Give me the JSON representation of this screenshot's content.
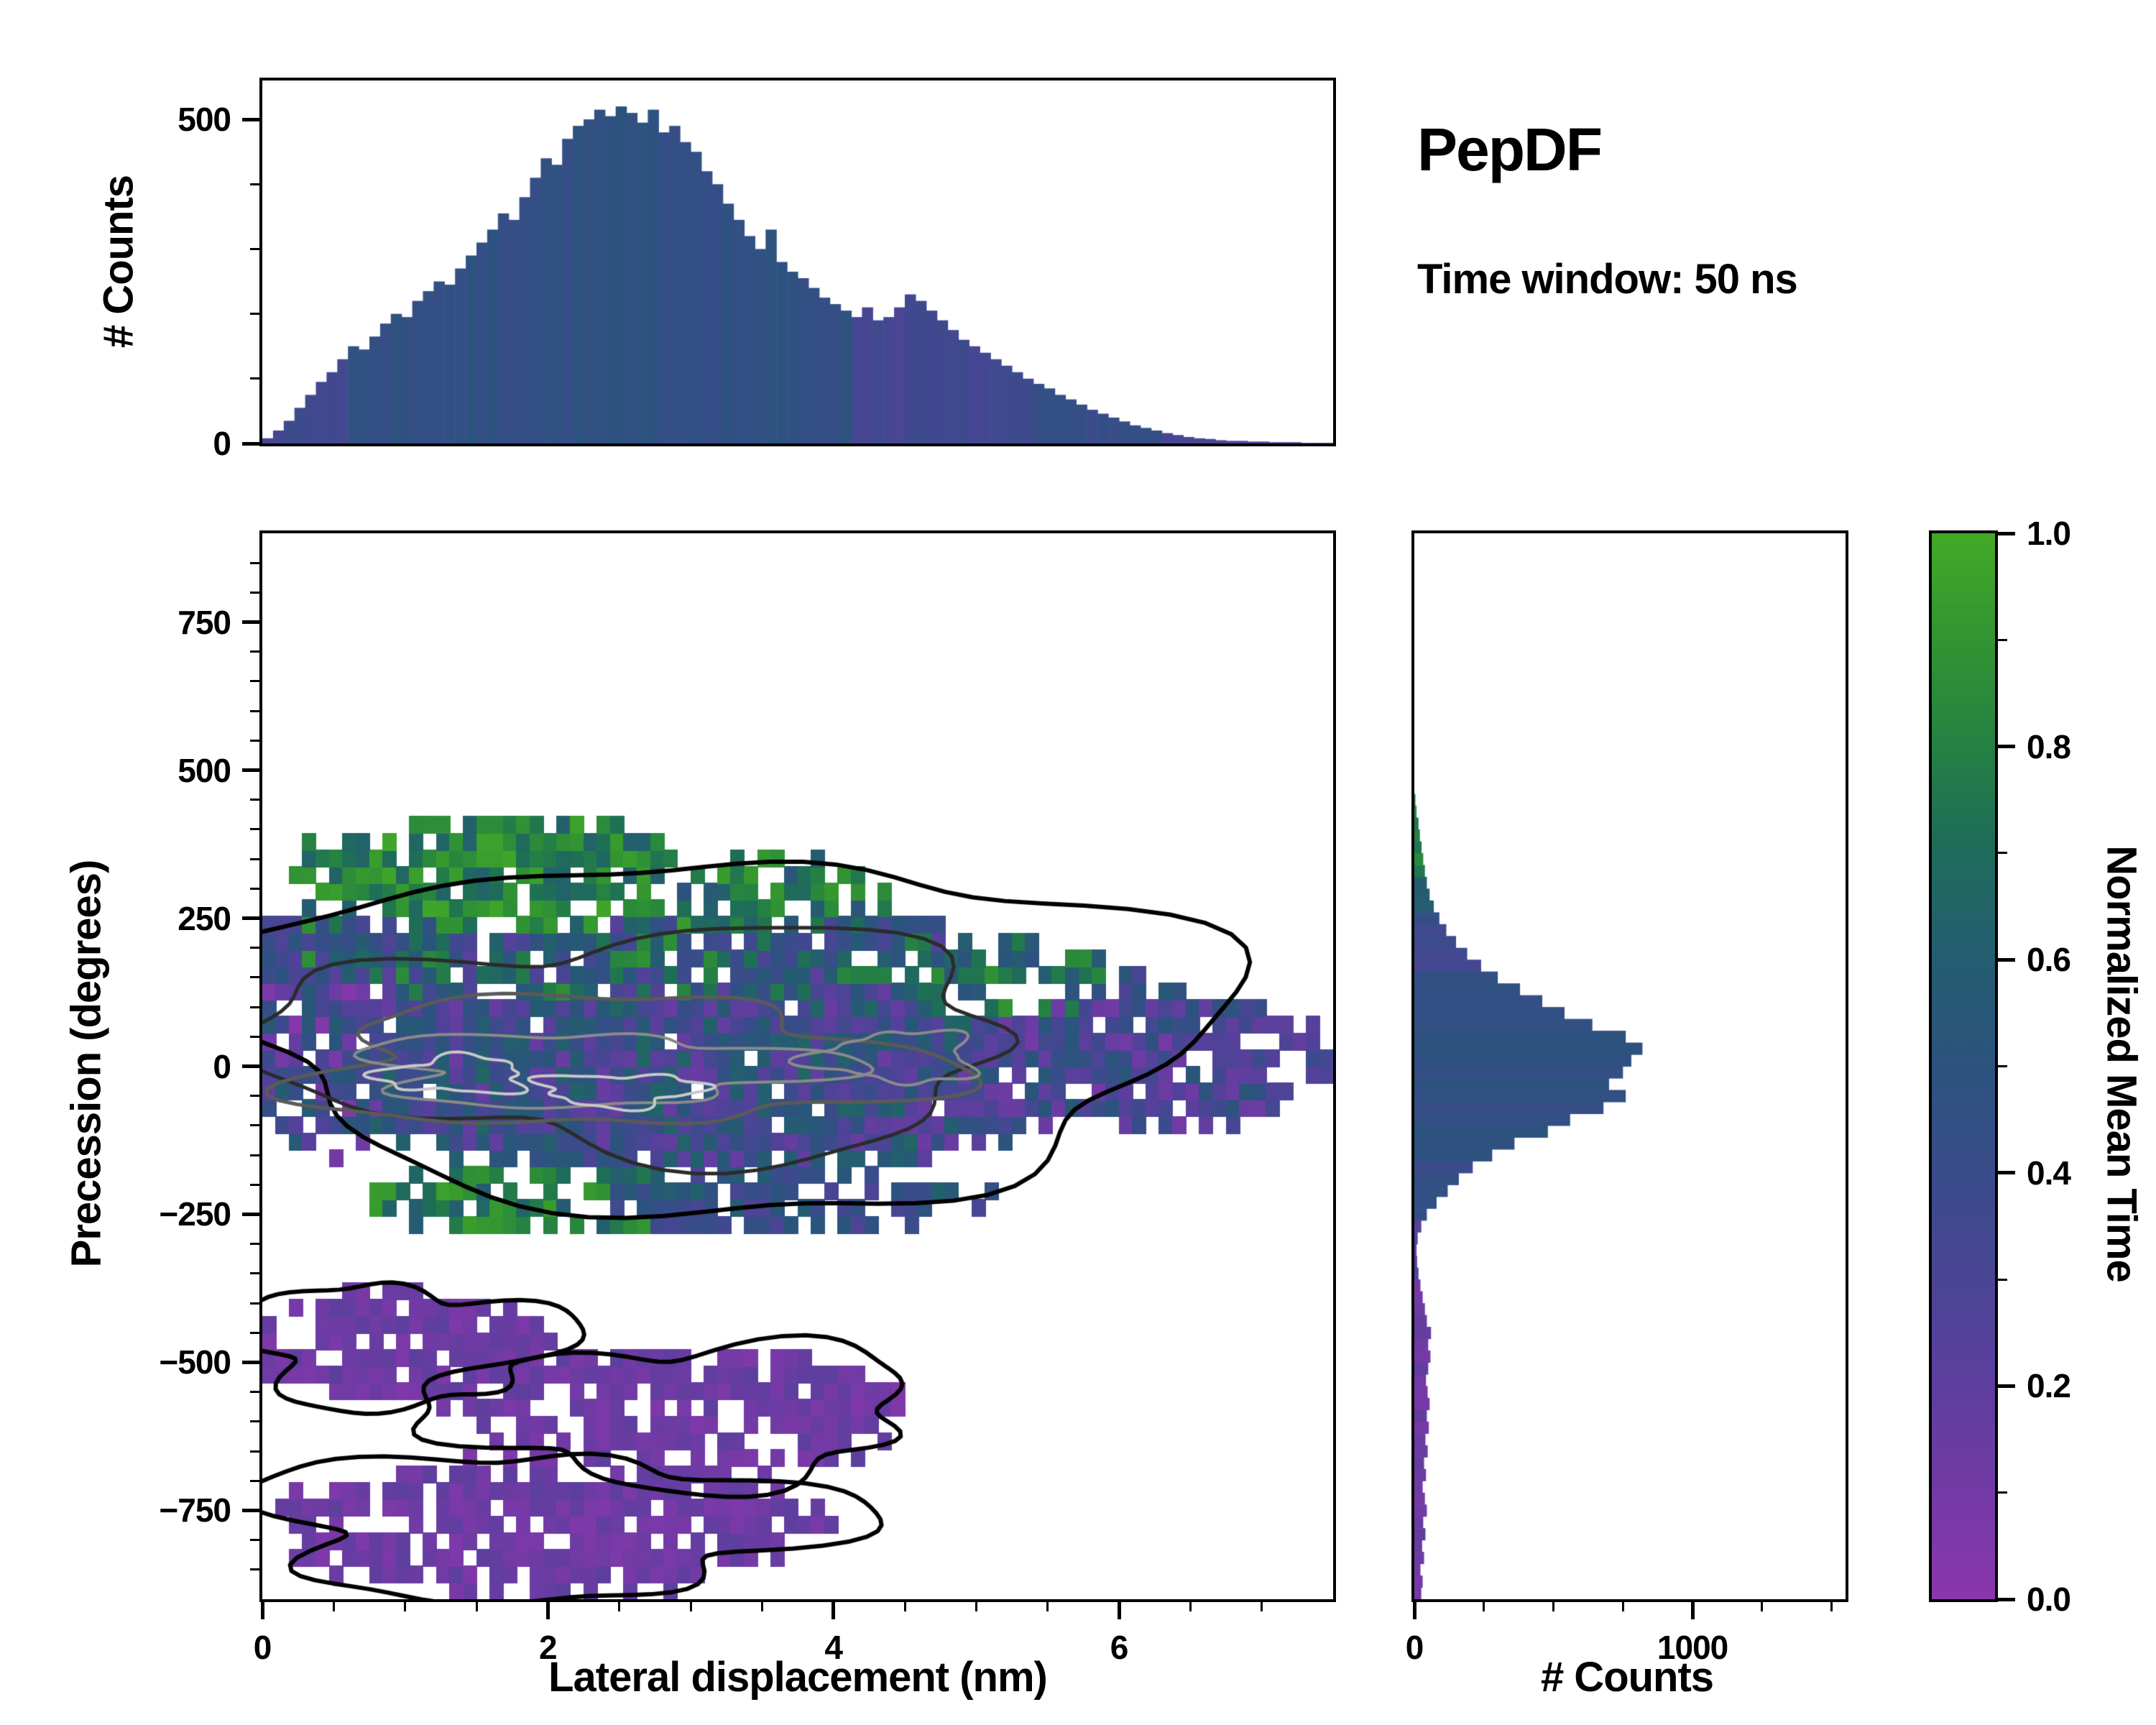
{
  "title": "PepDF",
  "subtitle": "Time window: 50 ns",
  "seed": 7,
  "colors": {
    "background": "#ffffff",
    "frame": "#000000",
    "text": "#000000"
  },
  "colormap": {
    "stops": [
      [
        0.0,
        "#8a36ad"
      ],
      [
        0.12,
        "#6e3ba4"
      ],
      [
        0.25,
        "#53419a"
      ],
      [
        0.38,
        "#3c4b8c"
      ],
      [
        0.5,
        "#2c537e"
      ],
      [
        0.62,
        "#235f6e"
      ],
      [
        0.72,
        "#1e6f56"
      ],
      [
        0.82,
        "#27853f"
      ],
      [
        0.92,
        "#35982f"
      ],
      [
        1.0,
        "#42aa28"
      ]
    ]
  },
  "chart_data": [
    {
      "type": "bar",
      "name": "top-marginal-histogram",
      "ylabel": "# Counts",
      "xlim": [
        0,
        7.5
      ],
      "ylim": [
        0,
        560
      ],
      "yticks": [
        {
          "v": 0,
          "label": "0"
        },
        {
          "v": 500,
          "label": "500"
        }
      ],
      "yminor_step": 100,
      "bin_start": 0,
      "bin_width": 0.075,
      "values": [
        8,
        20,
        35,
        55,
        75,
        95,
        110,
        130,
        150,
        145,
        165,
        185,
        200,
        195,
        220,
        235,
        250,
        245,
        270,
        290,
        310,
        330,
        355,
        345,
        380,
        410,
        440,
        430,
        470,
        490,
        500,
        515,
        505,
        520,
        510,
        495,
        515,
        480,
        490,
        465,
        450,
        420,
        400,
        370,
        345,
        320,
        300,
        330,
        280,
        265,
        255,
        240,
        225,
        215,
        205,
        195,
        210,
        190,
        195,
        210,
        230,
        220,
        205,
        190,
        175,
        160,
        150,
        140,
        130,
        120,
        110,
        100,
        92,
        85,
        75,
        68,
        60,
        52,
        46,
        40,
        34,
        28,
        24,
        20,
        16,
        13,
        10,
        8,
        7,
        5,
        4,
        4,
        3,
        3,
        2,
        2,
        2,
        1,
        1,
        1
      ],
      "color_zones": [
        [
          0,
          0.6,
          0.36
        ],
        [
          0.6,
          4.1,
          0.46
        ],
        [
          4.1,
          5.4,
          0.34
        ],
        [
          5.4,
          6.3,
          0.42
        ],
        [
          6.3,
          7.5,
          0.3
        ]
      ],
      "color_default": 0.45,
      "color_jitter": 0.04
    },
    {
      "type": "heatmap",
      "name": "joint-2d-histogram",
      "xlabel": "Lateral displacement (nm)",
      "ylabel": "Precession (degrees)",
      "xlim": [
        0,
        7.5
      ],
      "ylim": [
        -900,
        900
      ],
      "xticks": [
        {
          "v": 0,
          "label": "0"
        },
        {
          "v": 2,
          "label": "2"
        },
        {
          "v": 4,
          "label": "4"
        },
        {
          "v": 6,
          "label": "6"
        }
      ],
      "yticks": [
        {
          "v": 750,
          "label": "750"
        },
        {
          "v": 500,
          "label": "500"
        },
        {
          "v": 250,
          "label": "250"
        },
        {
          "v": 0,
          "label": "0"
        },
        {
          "v": -250,
          "label": "−250"
        },
        {
          "v": -500,
          "label": "−500"
        },
        {
          "v": -750,
          "label": "−750"
        }
      ],
      "xminor_step": 0.5,
      "yminor_step": 50,
      "nx": 80,
      "ny": 64,
      "clusters": [
        {
          "cx": 3.1,
          "cy": 40,
          "rx": 3.35,
          "ry": 215,
          "p": 0.96,
          "mu": 0.4,
          "s": 0.26
        },
        {
          "cx": 6.2,
          "cy": 10,
          "rx": 1.25,
          "ry": 115,
          "p": 0.88,
          "mu": 0.32,
          "s": 0.22
        },
        {
          "cx": 0.4,
          "cy": 50,
          "rx": 0.55,
          "ry": 200,
          "p": 0.85,
          "mu": 0.3,
          "s": 0.28
        },
        {
          "cx": 2.4,
          "cy": 210,
          "rx": 2.5,
          "ry": 100,
          "p": 0.92,
          "mu": 0.55,
          "s": 0.33
        },
        {
          "cx": 1.7,
          "cy": 320,
          "rx": 1.55,
          "ry": 95,
          "p": 0.85,
          "mu": 0.8,
          "s": 0.18
        },
        {
          "cx": 3.5,
          "cy": 290,
          "rx": 1.0,
          "ry": 65,
          "p": 0.65,
          "mu": 0.72,
          "s": 0.22
        },
        {
          "cx": 1.95,
          "cy": -225,
          "rx": 1.15,
          "ry": 60,
          "p": 0.8,
          "mu": 0.76,
          "s": 0.2
        },
        {
          "cx": 3.7,
          "cy": -230,
          "rx": 1.4,
          "ry": 50,
          "p": 0.75,
          "mu": 0.45,
          "s": 0.18
        },
        {
          "cx": 5.2,
          "cy": 150,
          "rx": 0.75,
          "ry": 65,
          "p": 0.55,
          "mu": 0.7,
          "s": 0.22
        },
        {
          "cx": 0.95,
          "cy": -470,
          "rx": 1.05,
          "ry": 95,
          "p": 0.8,
          "mu": 0.13,
          "s": 0.08
        },
        {
          "cx": 2.9,
          "cy": -585,
          "rx": 1.6,
          "ry": 110,
          "p": 0.76,
          "mu": 0.13,
          "s": 0.08
        },
        {
          "cx": 1.95,
          "cy": -775,
          "rx": 1.95,
          "ry": 115,
          "p": 0.76,
          "mu": 0.13,
          "s": 0.08
        },
        {
          "cx": 6.95,
          "cy": 20,
          "rx": 0.5,
          "ry": 60,
          "p": 0.7,
          "mu": 0.26,
          "s": 0.12
        }
      ],
      "contours": [
        {
          "cx": 3.2,
          "cy": 60,
          "rx": 3.45,
          "ry": 295,
          "color": "#000000",
          "w": 6,
          "a": 0.1
        },
        {
          "cx": 2.7,
          "cy": 40,
          "rx": 2.6,
          "ry": 185,
          "color": "#2b2b2b",
          "w": 5,
          "a": 0.14
        },
        {
          "cx": 2.45,
          "cy": 5,
          "rx": 2.15,
          "ry": 108,
          "color": "#5a5a5a",
          "w": 5,
          "a": 0.16
        },
        {
          "cx": 2.3,
          "cy": -5,
          "rx": 1.6,
          "ry": 60,
          "color": "#8a8a8a",
          "w": 4,
          "a": 0.18
        },
        {
          "cx": 4.45,
          "cy": 15,
          "rx": 0.55,
          "ry": 42,
          "color": "#8a8a8a",
          "w": 4,
          "a": 0.2
        },
        {
          "cx": 1.35,
          "cy": -15,
          "rx": 0.5,
          "ry": 30,
          "color": "#c8c8c8",
          "w": 4,
          "a": 0.2
        },
        {
          "cx": 2.5,
          "cy": -40,
          "rx": 0.55,
          "ry": 27,
          "color": "#c8c8c8",
          "w": 4,
          "a": 0.2
        },
        {
          "cx": 0.95,
          "cy": -470,
          "rx": 1.12,
          "ry": 102,
          "color": "#000000",
          "w": 6,
          "a": 0.16
        },
        {
          "cx": 2.9,
          "cy": -585,
          "rx": 1.68,
          "ry": 118,
          "color": "#000000",
          "w": 6,
          "a": 0.16
        },
        {
          "cx": 1.95,
          "cy": -775,
          "rx": 2.0,
          "ry": 122,
          "color": "#000000",
          "w": 6,
          "a": 0.16
        }
      ]
    },
    {
      "type": "bar-horizontal",
      "name": "right-marginal-histogram",
      "xlabel": "# Counts",
      "xlim": [
        0,
        1550
      ],
      "ylim": [
        -900,
        900
      ],
      "xticks": [
        {
          "v": 0,
          "label": "0"
        },
        {
          "v": 1000,
          "label": "1000"
        }
      ],
      "xminor_step": 250,
      "bin_start": -900,
      "bin_width": 20,
      "values": [
        25,
        30,
        22,
        35,
        28,
        40,
        32,
        45,
        38,
        30,
        42,
        35,
        48,
        40,
        52,
        45,
        55,
        48,
        42,
        50,
        58,
        50,
        60,
        45,
        38,
        30,
        22,
        15,
        10,
        8,
        12,
        25,
        45,
        80,
        120,
        160,
        210,
        280,
        360,
        480,
        560,
        680,
        760,
        700,
        750,
        780,
        820,
        760,
        640,
        540,
        460,
        380,
        300,
        240,
        190,
        150,
        115,
        90,
        70,
        55,
        45,
        38,
        32,
        26,
        20,
        15,
        8,
        4,
        0,
        0,
        0,
        0,
        0,
        0,
        0,
        0,
        0,
        0,
        0,
        0,
        0,
        0,
        0,
        0,
        0,
        0,
        0,
        0,
        0,
        0
      ],
      "color_zones": [
        [
          -900,
          -360,
          0.13
        ],
        [
          -360,
          -260,
          0.22
        ],
        [
          -260,
          -150,
          0.42
        ],
        [
          -150,
          160,
          0.47
        ],
        [
          160,
          260,
          0.38
        ],
        [
          260,
          330,
          0.6
        ],
        [
          330,
          460,
          0.8
        ]
      ],
      "color_default": 0.45,
      "color_jitter": 0.05
    },
    {
      "type": "colorbar",
      "name": "colorbar",
      "label": "Normalized Mean Time",
      "lim": [
        0,
        1
      ],
      "ticks": [
        {
          "v": 1.0,
          "label": "1.0"
        },
        {
          "v": 0.8,
          "label": "0.8"
        },
        {
          "v": 0.6,
          "label": "0.6"
        },
        {
          "v": 0.4,
          "label": "0.4"
        },
        {
          "v": 0.2,
          "label": "0.2"
        },
        {
          "v": 0.0,
          "label": "0.0"
        }
      ],
      "minor_step": 0.1
    }
  ]
}
